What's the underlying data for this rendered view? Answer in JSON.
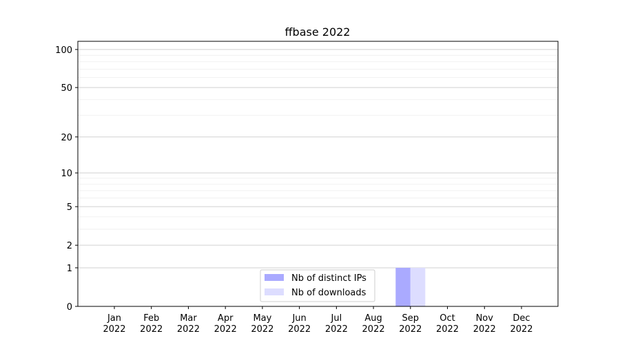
{
  "chart_data": {
    "type": "bar",
    "title": "ffbase 2022",
    "xlabel": "",
    "ylabel": "",
    "yscale": "log(1+y)",
    "ylim": [
      0,
      116
    ],
    "yticks": [
      0,
      1,
      2,
      5,
      10,
      20,
      50,
      100
    ],
    "yminor": [
      3,
      4,
      6,
      7,
      8,
      9,
      30,
      40,
      60,
      70,
      80,
      90
    ],
    "categories": [
      "Jan\n2022",
      "Feb\n2022",
      "Mar\n2022",
      "Apr\n2022",
      "May\n2022",
      "Jun\n2022",
      "Jul\n2022",
      "Aug\n2022",
      "Sep\n2022",
      "Oct\n2022",
      "Nov\n2022",
      "Dec\n2022"
    ],
    "series": [
      {
        "name": "Nb of distinct IPs",
        "color": "#aaaaff",
        "values": [
          0,
          0,
          0,
          0,
          0,
          0,
          0,
          0,
          1,
          0,
          0,
          0
        ]
      },
      {
        "name": "Nb of downloads",
        "color": "#ddddff",
        "values": [
          0,
          0,
          0,
          0,
          0,
          0,
          0,
          0,
          1,
          0,
          0,
          0
        ]
      }
    ],
    "grid": true,
    "legend": "bottom-center"
  }
}
